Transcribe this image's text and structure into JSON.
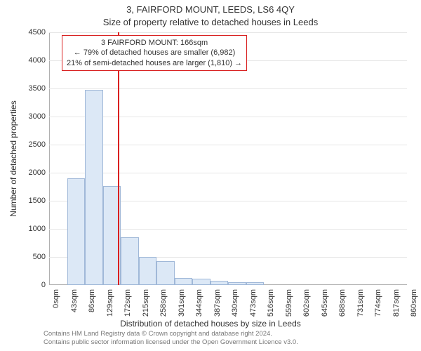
{
  "title_main": "3, FAIRFORD MOUNT, LEEDS, LS6 4QY",
  "title_sub": "Size of property relative to detached houses in Leeds",
  "y_axis_label": "Number of detached properties",
  "x_axis_label": "Distribution of detached houses by size in Leeds",
  "footer_line1": "Contains HM Land Registry data © Crown copyright and database right 2024.",
  "footer_line2": "Contains public sector information licensed under the Open Government Licence v3.0.",
  "chart": {
    "type": "histogram",
    "xlim": [
      0,
      860
    ],
    "ylim": [
      0,
      4500
    ],
    "ytick_step": 500,
    "xtick_step": 43,
    "xtick_labels": [
      "0sqm",
      "43sqm",
      "86sqm",
      "129sqm",
      "172sqm",
      "215sqm",
      "258sqm",
      "301sqm",
      "344sqm",
      "387sqm",
      "430sqm",
      "473sqm",
      "516sqm",
      "559sqm",
      "602sqm",
      "645sqm",
      "688sqm",
      "731sqm",
      "774sqm",
      "817sqm",
      "860sqm"
    ],
    "ytick_labels": [
      "0",
      "500",
      "1000",
      "1500",
      "2000",
      "2500",
      "3000",
      "3500",
      "4000",
      "4500"
    ],
    "bars": [
      {
        "x": 0,
        "w": 43,
        "v": 0
      },
      {
        "x": 43,
        "w": 43,
        "v": 1900
      },
      {
        "x": 86,
        "w": 43,
        "v": 3470
      },
      {
        "x": 129,
        "w": 43,
        "v": 1760
      },
      {
        "x": 172,
        "w": 43,
        "v": 850
      },
      {
        "x": 215,
        "w": 43,
        "v": 500
      },
      {
        "x": 258,
        "w": 43,
        "v": 420
      },
      {
        "x": 301,
        "w": 43,
        "v": 130
      },
      {
        "x": 344,
        "w": 43,
        "v": 110
      },
      {
        "x": 387,
        "w": 43,
        "v": 80
      },
      {
        "x": 430,
        "w": 43,
        "v": 50
      },
      {
        "x": 473,
        "w": 43,
        "v": 45
      }
    ],
    "bar_fill": "#dce8f6",
    "bar_stroke": "#a0b8d8",
    "grid_color": "#e6e6e6",
    "axis_color": "#b0b0b0",
    "refline_x": 166,
    "refline_color": "#d92020",
    "annotation": {
      "line1": "3 FAIRFORD MOUNT: 166sqm",
      "line2": "← 79% of detached houses are smaller (6,982)",
      "line3": "21% of semi-detached houses are larger (1,810) →"
    },
    "label_fontsize": 11,
    "axis_label_fontsize": 12,
    "title_fontsize": 13,
    "background_color": "#ffffff"
  }
}
